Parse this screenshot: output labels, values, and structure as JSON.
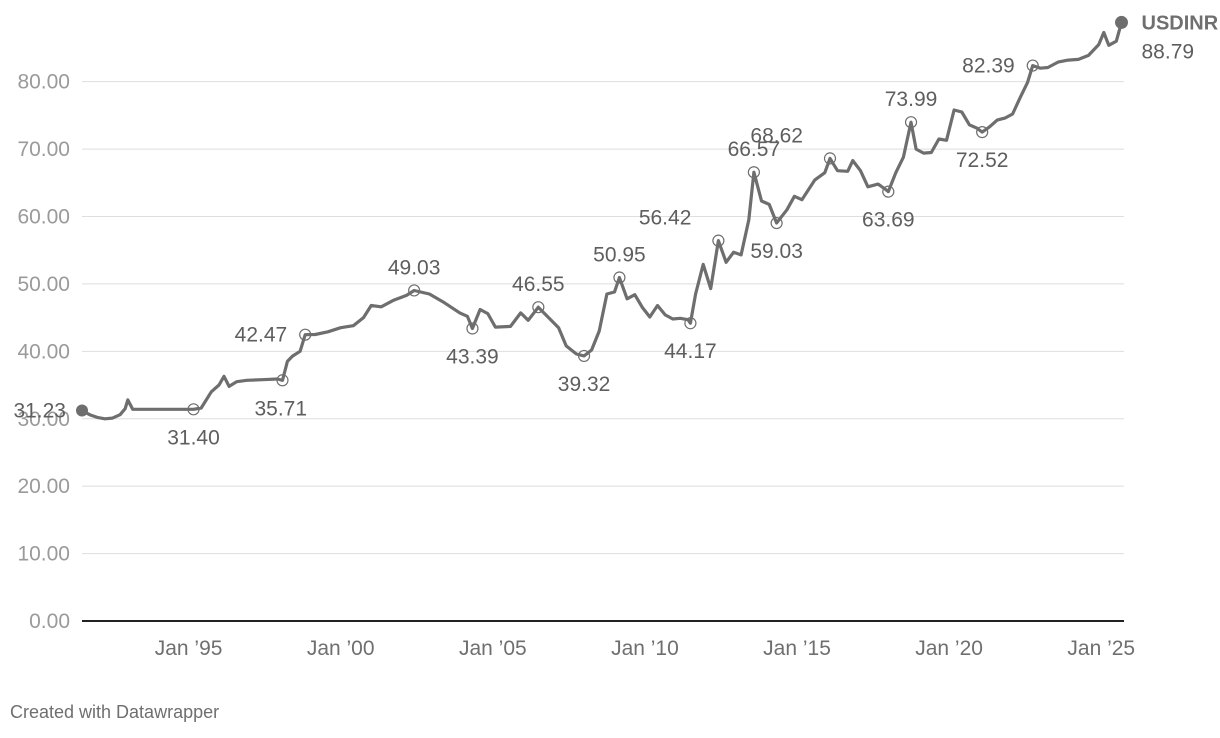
{
  "chart_data": {
    "type": "line",
    "title": "",
    "xlabel": "",
    "ylabel": "",
    "ylim": [
      0,
      89
    ],
    "xlim": [
      "1991-07-01",
      "2025-10-01"
    ],
    "y_ticks": [
      {
        "value": 0,
        "label": "0.00"
      },
      {
        "value": 10,
        "label": "10.00"
      },
      {
        "value": 20,
        "label": "20.00"
      },
      {
        "value": 30,
        "label": "30.00"
      },
      {
        "value": 40,
        "label": "40.00"
      },
      {
        "value": 50,
        "label": "50.00"
      },
      {
        "value": 60,
        "label": "60.00"
      },
      {
        "value": 70,
        "label": "70.00"
      },
      {
        "value": 80,
        "label": "80.00"
      }
    ],
    "x_ticks": [
      {
        "date": "1995-01-01",
        "label": "Jan ’95"
      },
      {
        "date": "2000-01-01",
        "label": "Jan ’00"
      },
      {
        "date": "2005-01-01",
        "label": "Jan ’05"
      },
      {
        "date": "2010-01-01",
        "label": "Jan ’10"
      },
      {
        "date": "2015-01-01",
        "label": "Jan ’15"
      },
      {
        "date": "2020-01-01",
        "label": "Jan ’20"
      },
      {
        "date": "2025-01-01",
        "label": "Jan ’25"
      }
    ],
    "grid": true,
    "series": [
      {
        "name": "USDINR",
        "last_label": "88.79",
        "color": "#6e6e6e",
        "points": [
          [
            "1991-07-01",
            31.23
          ],
          [
            "1991-10-01",
            30.6
          ],
          [
            "1992-01-01",
            30.2
          ],
          [
            "1992-04-01",
            30.0
          ],
          [
            "1992-07-01",
            30.1
          ],
          [
            "1992-10-01",
            30.6
          ],
          [
            "1992-12-01",
            31.5
          ],
          [
            "1993-01-01",
            32.8
          ],
          [
            "1993-03-01",
            31.4
          ],
          [
            "1993-06-01",
            31.4
          ],
          [
            "1994-01-01",
            31.4
          ],
          [
            "1994-06-01",
            31.4
          ],
          [
            "1994-12-01",
            31.4
          ],
          [
            "1995-03-01",
            31.4
          ],
          [
            "1995-06-01",
            31.6
          ],
          [
            "1995-10-01",
            34.0
          ],
          [
            "1996-01-01",
            35.0
          ],
          [
            "1996-03-01",
            36.3
          ],
          [
            "1996-05-01",
            34.8
          ],
          [
            "1996-08-01",
            35.5
          ],
          [
            "1996-12-01",
            35.7
          ],
          [
            "1997-06-01",
            35.8
          ],
          [
            "1997-12-01",
            35.9
          ],
          [
            "1998-02-01",
            35.71
          ],
          [
            "1998-04-01",
            38.5
          ],
          [
            "1998-06-01",
            39.3
          ],
          [
            "1998-09-01",
            40.0
          ],
          [
            "1998-11-01",
            42.47
          ],
          [
            "1999-03-01",
            42.5
          ],
          [
            "1999-08-01",
            42.9
          ],
          [
            "2000-01-01",
            43.5
          ],
          [
            "2000-06-01",
            43.8
          ],
          [
            "2000-10-01",
            45.0
          ],
          [
            "2001-01-01",
            46.8
          ],
          [
            "2001-05-01",
            46.6
          ],
          [
            "2001-10-01",
            47.6
          ],
          [
            "2002-03-01",
            48.3
          ],
          [
            "2002-06-01",
            49.03
          ],
          [
            "2002-12-01",
            48.5
          ],
          [
            "2003-06-01",
            47.2
          ],
          [
            "2003-12-01",
            45.7
          ],
          [
            "2004-03-01",
            45.2
          ],
          [
            "2004-05-01",
            43.39
          ],
          [
            "2004-08-01",
            46.2
          ],
          [
            "2004-11-01",
            45.6
          ],
          [
            "2005-02-01",
            43.6
          ],
          [
            "2005-08-01",
            43.7
          ],
          [
            "2005-12-01",
            45.7
          ],
          [
            "2006-03-01",
            44.6
          ],
          [
            "2006-07-01",
            46.55
          ],
          [
            "2006-11-01",
            45.0
          ],
          [
            "2007-03-01",
            43.5
          ],
          [
            "2007-06-01",
            40.8
          ],
          [
            "2007-10-01",
            39.6
          ],
          [
            "2008-01-01",
            39.32
          ],
          [
            "2008-04-01",
            40.2
          ],
          [
            "2008-07-01",
            43.0
          ],
          [
            "2008-10-01",
            48.5
          ],
          [
            "2009-01-01",
            48.8
          ],
          [
            "2009-03-01",
            50.95
          ],
          [
            "2009-06-01",
            47.8
          ],
          [
            "2009-09-01",
            48.4
          ],
          [
            "2009-12-01",
            46.5
          ],
          [
            "2010-03-01",
            45.1
          ],
          [
            "2010-06-01",
            46.8
          ],
          [
            "2010-09-01",
            45.4
          ],
          [
            "2010-12-01",
            44.8
          ],
          [
            "2011-03-01",
            44.9
          ],
          [
            "2011-06-01",
            44.7
          ],
          [
            "2011-07-01",
            44.17
          ],
          [
            "2011-09-01",
            48.5
          ],
          [
            "2011-12-01",
            52.9
          ],
          [
            "2012-03-01",
            49.3
          ],
          [
            "2012-06-01",
            56.42
          ],
          [
            "2012-09-01",
            53.2
          ],
          [
            "2012-12-01",
            54.7
          ],
          [
            "2013-03-01",
            54.3
          ],
          [
            "2013-06-01",
            59.5
          ],
          [
            "2013-08-01",
            66.57
          ],
          [
            "2013-11-01",
            62.3
          ],
          [
            "2014-02-01",
            61.8
          ],
          [
            "2014-05-01",
            59.03
          ],
          [
            "2014-09-01",
            61.0
          ],
          [
            "2014-12-01",
            63.0
          ],
          [
            "2015-03-01",
            62.5
          ],
          [
            "2015-08-01",
            65.4
          ],
          [
            "2015-12-01",
            66.5
          ],
          [
            "2016-02-01",
            68.62
          ],
          [
            "2016-05-01",
            66.8
          ],
          [
            "2016-09-01",
            66.7
          ],
          [
            "2016-11-01",
            68.3
          ],
          [
            "2017-02-01",
            66.8
          ],
          [
            "2017-05-01",
            64.4
          ],
          [
            "2017-09-01",
            64.8
          ],
          [
            "2017-12-01",
            64.0
          ],
          [
            "2018-01-01",
            63.69
          ],
          [
            "2018-04-01",
            66.5
          ],
          [
            "2018-07-01",
            68.8
          ],
          [
            "2018-10-01",
            73.99
          ],
          [
            "2018-12-01",
            70.0
          ],
          [
            "2019-03-01",
            69.4
          ],
          [
            "2019-06-01",
            69.5
          ],
          [
            "2019-09-01",
            71.5
          ],
          [
            "2019-12-01",
            71.3
          ],
          [
            "2020-03-01",
            75.8
          ],
          [
            "2020-06-01",
            75.5
          ],
          [
            "2020-09-01",
            73.6
          ],
          [
            "2020-12-01",
            73.1
          ],
          [
            "2021-02-01",
            72.52
          ],
          [
            "2021-05-01",
            73.3
          ],
          [
            "2021-08-01",
            74.3
          ],
          [
            "2021-11-01",
            74.6
          ],
          [
            "2022-02-01",
            75.2
          ],
          [
            "2022-05-01",
            77.6
          ],
          [
            "2022-08-01",
            79.9
          ],
          [
            "2022-10-01",
            82.39
          ],
          [
            "2023-01-01",
            82.0
          ],
          [
            "2023-04-01",
            82.1
          ],
          [
            "2023-08-01",
            82.9
          ],
          [
            "2023-12-01",
            83.2
          ],
          [
            "2024-04-01",
            83.3
          ],
          [
            "2024-08-01",
            83.9
          ],
          [
            "2024-12-01",
            85.5
          ],
          [
            "2025-02-01",
            87.3
          ],
          [
            "2025-04-01",
            85.4
          ],
          [
            "2025-07-01",
            86.0
          ],
          [
            "2025-09-01",
            88.79
          ]
        ]
      }
    ],
    "annotations": [
      {
        "date": "1991-07-01",
        "value": 31.23,
        "label": "31.23",
        "pos": "left",
        "marker": "filled"
      },
      {
        "date": "1995-03-01",
        "value": 31.4,
        "label": "31.40",
        "pos": "below"
      },
      {
        "date": "1998-02-01",
        "value": 35.71,
        "label": "35.71",
        "pos": "below-right"
      },
      {
        "date": "1998-11-01",
        "value": 42.47,
        "label": "42.47",
        "pos": "left"
      },
      {
        "date": "2002-06-01",
        "value": 49.03,
        "label": "49.03",
        "pos": "above"
      },
      {
        "date": "2004-05-01",
        "value": 43.39,
        "label": "43.39",
        "pos": "below"
      },
      {
        "date": "2006-07-01",
        "value": 46.55,
        "label": "46.55",
        "pos": "above"
      },
      {
        "date": "2008-01-01",
        "value": 39.32,
        "label": "39.32",
        "pos": "below"
      },
      {
        "date": "2009-03-01",
        "value": 50.95,
        "label": "50.95",
        "pos": "above"
      },
      {
        "date": "2011-07-01",
        "value": 44.17,
        "label": "44.17",
        "pos": "below"
      },
      {
        "date": "2012-06-01",
        "value": 56.42,
        "label": "56.42",
        "pos": "above-left"
      },
      {
        "date": "2013-08-01",
        "value": 66.57,
        "label": "66.57",
        "pos": "above"
      },
      {
        "date": "2014-05-01",
        "value": 59.03,
        "label": "59.03",
        "pos": "below"
      },
      {
        "date": "2016-02-01",
        "value": 68.62,
        "label": "68.62",
        "pos": "above-left"
      },
      {
        "date": "2018-01-01",
        "value": 63.69,
        "label": "63.69",
        "pos": "below"
      },
      {
        "date": "2018-10-01",
        "value": 73.99,
        "label": "73.99",
        "pos": "above"
      },
      {
        "date": "2021-02-01",
        "value": 72.52,
        "label": "72.52",
        "pos": "below"
      },
      {
        "date": "2022-10-01",
        "value": 82.39,
        "label": "82.39",
        "pos": "left"
      }
    ]
  },
  "credit": "Created with Datawrapper"
}
